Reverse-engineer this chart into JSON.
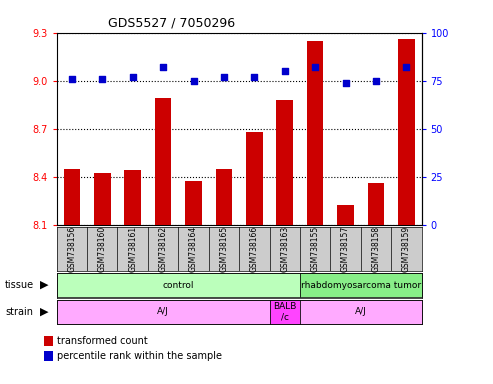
{
  "title": "GDS5527 / 7050296",
  "samples": [
    "GSM738156",
    "GSM738160",
    "GSM738161",
    "GSM738162",
    "GSM738164",
    "GSM738165",
    "GSM738166",
    "GSM738163",
    "GSM738155",
    "GSM738157",
    "GSM738158",
    "GSM738159"
  ],
  "bar_values": [
    8.45,
    8.42,
    8.44,
    8.89,
    8.37,
    8.45,
    8.68,
    8.88,
    9.25,
    8.22,
    8.36,
    9.26
  ],
  "percentile_values": [
    76,
    76,
    77,
    82,
    75,
    77,
    77,
    80,
    82,
    74,
    75,
    82
  ],
  "ylim_left": [
    8.1,
    9.3
  ],
  "ylim_right": [
    0,
    100
  ],
  "yticks_left": [
    8.1,
    8.4,
    8.7,
    9.0,
    9.3
  ],
  "yticks_right": [
    0,
    25,
    50,
    75,
    100
  ],
  "bar_color": "#cc0000",
  "dot_color": "#0000cc",
  "tissue_rows": [
    {
      "label": "control",
      "start": 0,
      "end": 8,
      "color": "#bbffbb"
    },
    {
      "label": "rhabdomyosarcoma tumor",
      "start": 8,
      "end": 12,
      "color": "#88ee88"
    }
  ],
  "strain_rows": [
    {
      "label": "A/J",
      "start": 0,
      "end": 7,
      "color": "#ffaaff"
    },
    {
      "label": "BALB\n/c",
      "start": 7,
      "end": 8,
      "color": "#ff44ff"
    },
    {
      "label": "A/J",
      "start": 8,
      "end": 12,
      "color": "#ffaaff"
    }
  ],
  "legend_bar_label": "transformed count",
  "legend_dot_label": "percentile rank within the sample",
  "tick_bg_color": "#cccccc"
}
